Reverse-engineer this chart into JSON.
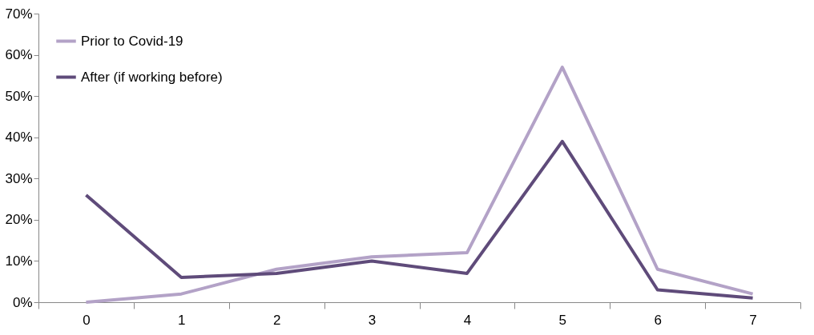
{
  "chart_data": {
    "type": "line",
    "categories": [
      "0",
      "1",
      "2",
      "3",
      "4",
      "5",
      "6",
      "7"
    ],
    "series": [
      {
        "name": "Prior to Covid-19",
        "color": "#b3a2c7",
        "values": [
          0,
          2,
          8,
          11,
          12,
          57,
          8,
          2
        ]
      },
      {
        "name": "After (if working before)",
        "color": "#5f4b7a",
        "values": [
          26,
          6,
          7,
          10,
          7,
          39,
          3,
          1
        ]
      }
    ],
    "ylim": [
      0,
      70
    ],
    "yticks": [
      {
        "value": 0,
        "label": "0%"
      },
      {
        "value": 10,
        "label": "10%"
      },
      {
        "value": 20,
        "label": "20%"
      },
      {
        "value": 30,
        "label": "30%"
      },
      {
        "value": 40,
        "label": "40%"
      },
      {
        "value": 50,
        "label": "50%"
      },
      {
        "value": 60,
        "label": "60%"
      },
      {
        "value": 70,
        "label": "70%"
      }
    ],
    "grid": false,
    "legend": "top left",
    "marker": "none",
    "line_style": "solid"
  }
}
